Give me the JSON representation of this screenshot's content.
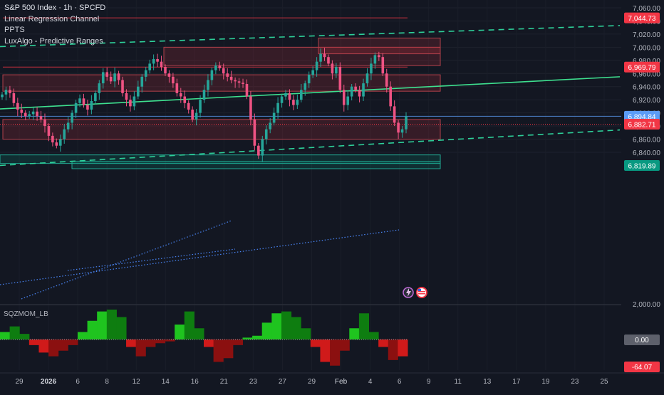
{
  "chart_data": {
    "type": "candlestick",
    "symbol_line": "S&P 500 Index · 1h · SPCFD",
    "indicators": [
      "Linear Regression Channel",
      "PPTS",
      "LuxAlgo - Predictive Ranges"
    ],
    "price_axis": {
      "ticks": [
        "7,060.00",
        "7,040.00",
        "7,020.00",
        "7,000.00",
        "6,980.00",
        "6,960.00",
        "6,940.00",
        "6,920.00",
        "6,900.00",
        "6,880.00",
        "6,860.00",
        "6,840.00"
      ],
      "range": [
        6800,
        7070
      ]
    },
    "price_badges": [
      {
        "value": 7044.73,
        "text": "7,044.73",
        "color": "#f23645"
      },
      {
        "value": 6969.79,
        "text": "6,969.79",
        "color": "#f23645"
      },
      {
        "value": 6894.84,
        "text": "6,894.84",
        "color": "#5b9cf6"
      },
      {
        "value": 6882.71,
        "text": "6,882.71",
        "color": "#f23645"
      },
      {
        "value": 6819.89,
        "text": "6,819.89",
        "color": "#089981"
      }
    ],
    "x_axis": {
      "labels": [
        "29",
        "2026",
        "6",
        "8",
        "12",
        "14",
        "16",
        "21",
        "23",
        "27",
        "29",
        "Feb",
        "4",
        "6",
        "9",
        "11",
        "13",
        "17",
        "19",
        "23",
        "25"
      ]
    },
    "candles_close": [
      6928,
      6935,
      6930,
      6915,
      6905,
      6900,
      6895,
      6898,
      6902,
      6895,
      6890,
      6880,
      6865,
      6855,
      6850,
      6860,
      6875,
      6885,
      6900,
      6915,
      6922,
      6912,
      6905,
      6918,
      6930,
      6945,
      6962,
      6955,
      6948,
      6960,
      6950,
      6930,
      6920,
      6910,
      6925,
      6940,
      6955,
      6965,
      6975,
      6982,
      6978,
      6970,
      6960,
      6955,
      6945,
      6930,
      6925,
      6915,
      6905,
      6890,
      6900,
      6920,
      6935,
      6950,
      6965,
      6972,
      6968,
      6960,
      6955,
      6950,
      6948,
      6946,
      6944,
      6925,
      6890,
      6850,
      6835,
      6860,
      6875,
      6885,
      6900,
      6915,
      6925,
      6930,
      6920,
      6912,
      6920,
      6935,
      6945,
      6958,
      6965,
      6978,
      6990,
      6985,
      6975,
      6960,
      6970,
      6935,
      6912,
      6925,
      6940,
      6935,
      6925,
      6945,
      6960,
      6975,
      6988,
      6985,
      6960,
      6940,
      6910,
      6885,
      6870,
      6875,
      6895
    ],
    "regression_channel": {
      "upper": [
        [
          0,
          7001
        ],
        [
          870,
          7033
        ]
      ],
      "middle": [
        [
          0,
          6906
        ],
        [
          870,
          6955
        ]
      ],
      "lower": [
        [
          0,
          6820
        ],
        [
          870,
          6874
        ]
      ]
    },
    "predictive_ranges": {
      "resistance_zones": [
        [
          6860,
          6890
        ],
        [
          6933,
          6958
        ],
        [
          6972,
          7000
        ],
        [
          6990,
          7014
        ]
      ],
      "support_zones": [
        [
          6823,
          6836
        ],
        [
          6815,
          6826
        ]
      ],
      "levels": [
        7044.73,
        6969.79,
        6894.84
      ]
    },
    "oscillator": {
      "name": "SQZMOM_LB",
      "ticks": [
        "2,000.00",
        "0.00",
        "-64.07"
      ],
      "values": [
        40,
        70,
        30,
        -30,
        -70,
        -90,
        -60,
        -30,
        40,
        100,
        150,
        160,
        120,
        -40,
        -90,
        -40,
        -20,
        -10,
        80,
        150,
        60,
        -40,
        -120,
        -100,
        -30,
        10,
        20,
        90,
        140,
        150,
        120,
        60,
        -40,
        -120,
        -140,
        -60,
        60,
        140,
        40,
        -40,
        -110,
        -90
      ]
    }
  }
}
